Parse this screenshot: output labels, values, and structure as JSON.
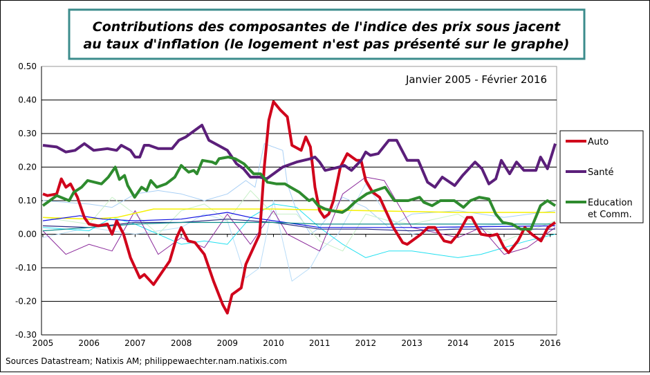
{
  "chart_data": {
    "type": "line",
    "title_lines": [
      "Contributions des composantes de l'indice des prix sous jacent",
      "au taux d'inflation (le logement n'est pas présenté sur le graphe)"
    ],
    "annotation": "Janvier 2005 - Février 2016",
    "source": "Sources Datastream; Natixis AM; philippewaechter.nam.natixis.com",
    "xlim": [
      2005,
      2016.15
    ],
    "ylim": [
      -0.3,
      0.5
    ],
    "x_ticks": [
      "2005",
      "2006",
      "2007",
      "2008",
      "2009",
      "2010",
      "2011",
      "2012",
      "2013",
      "2014",
      "2015",
      "2016"
    ],
    "y_ticks": [
      "0.50",
      "0.40",
      "0.30",
      "0.20",
      "0.10",
      "0.00",
      "-0.10",
      "-0.20",
      "-0.30"
    ],
    "grid": "horizontal",
    "legend_position": "right",
    "series": [
      {
        "name": "Auto",
        "color": "#D0021B",
        "width": 4,
        "x": [
          2005.0,
          2005.1,
          2005.3,
          2005.4,
          2005.5,
          2005.6,
          2005.75,
          2005.9,
          2006.0,
          2006.2,
          2006.4,
          2006.5,
          2006.6,
          2006.75,
          2006.9,
          2007.1,
          2007.2,
          2007.4,
          2007.6,
          2007.75,
          2007.9,
          2008.0,
          2008.15,
          2008.3,
          2008.5,
          2008.7,
          2008.9,
          2009.0,
          2009.1,
          2009.3,
          2009.4,
          2009.6,
          2009.7,
          2009.8,
          2009.9,
          2010.0,
          2010.15,
          2010.3,
          2010.4,
          2010.6,
          2010.7,
          2010.8,
          2010.9,
          2011.0,
          2011.1,
          2011.2,
          2011.3,
          2011.45,
          2011.6,
          2011.8,
          2011.9,
          2012.0,
          2012.15,
          2012.3,
          2012.5,
          2012.6,
          2012.8,
          2012.9,
          2013.0,
          2013.2,
          2013.35,
          2013.5,
          2013.7,
          2013.85,
          2014.0,
          2014.2,
          2014.3,
          2014.5,
          2014.7,
          2014.85,
          2015.0,
          2015.1,
          2015.3,
          2015.45,
          2015.6,
          2015.8,
          2015.95,
          2016.11
        ],
        "y": [
          0.12,
          0.115,
          0.12,
          0.165,
          0.14,
          0.15,
          0.11,
          0.05,
          0.03,
          0.025,
          0.03,
          0.0,
          0.04,
          0.0,
          -0.07,
          -0.13,
          -0.12,
          -0.15,
          -0.11,
          -0.08,
          -0.01,
          0.02,
          -0.02,
          -0.025,
          -0.06,
          -0.14,
          -0.21,
          -0.235,
          -0.18,
          -0.16,
          -0.09,
          -0.03,
          0.0,
          0.2,
          0.34,
          0.395,
          0.37,
          0.35,
          0.265,
          0.25,
          0.29,
          0.26,
          0.14,
          0.07,
          0.05,
          0.06,
          0.1,
          0.2,
          0.24,
          0.22,
          0.22,
          0.16,
          0.125,
          0.11,
          0.05,
          0.02,
          -0.025,
          -0.03,
          -0.02,
          0.0,
          0.02,
          0.02,
          -0.02,
          -0.025,
          0.0,
          0.05,
          0.05,
          0.0,
          -0.005,
          0.0,
          -0.04,
          -0.055,
          -0.02,
          0.02,
          0.0,
          -0.02,
          0.02,
          0.035
        ]
      },
      {
        "name": "Santé",
        "color": "#5B1F7A",
        "width": 4,
        "x": [
          2005.0,
          2005.3,
          2005.5,
          2005.7,
          2005.9,
          2006.1,
          2006.4,
          2006.6,
          2006.7,
          2006.9,
          2007.0,
          2007.1,
          2007.2,
          2007.3,
          2007.5,
          2007.8,
          2007.95,
          2008.1,
          2008.3,
          2008.45,
          2008.6,
          2008.8,
          2009.0,
          2009.2,
          2009.35,
          2009.5,
          2009.7,
          2009.85,
          2010.0,
          2010.2,
          2010.5,
          2010.8,
          2010.9,
          2011.0,
          2011.12,
          2011.42,
          2011.54,
          2011.69,
          2011.9,
          2012.0,
          2012.1,
          2012.27,
          2012.5,
          2012.67,
          2012.9,
          2013.14,
          2013.34,
          2013.5,
          2013.66,
          2013.93,
          2014.1,
          2014.37,
          2014.52,
          2014.67,
          2014.82,
          2014.94,
          2015.12,
          2015.27,
          2015.43,
          2015.69,
          2015.79,
          2015.94,
          2016.11
        ],
        "y": [
          0.265,
          0.26,
          0.245,
          0.25,
          0.27,
          0.25,
          0.255,
          0.25,
          0.265,
          0.25,
          0.23,
          0.23,
          0.265,
          0.265,
          0.255,
          0.255,
          0.28,
          0.29,
          0.31,
          0.325,
          0.28,
          0.265,
          0.25,
          0.21,
          0.195,
          0.17,
          0.17,
          0.165,
          0.18,
          0.2,
          0.215,
          0.225,
          0.23,
          0.215,
          0.19,
          0.2,
          0.205,
          0.19,
          0.22,
          0.245,
          0.235,
          0.24,
          0.28,
          0.28,
          0.22,
          0.22,
          0.155,
          0.14,
          0.17,
          0.145,
          0.175,
          0.215,
          0.195,
          0.15,
          0.165,
          0.22,
          0.18,
          0.215,
          0.19,
          0.19,
          0.23,
          0.195,
          0.27
        ]
      },
      {
        "name": "Education et Comm.",
        "color": "#2E8B2E",
        "width": 4,
        "x": [
          2005.0,
          2005.3,
          2005.57,
          2005.67,
          2005.84,
          2005.97,
          2006.27,
          2006.42,
          2006.57,
          2006.66,
          2006.77,
          2006.84,
          2006.99,
          2007.14,
          2007.25,
          2007.34,
          2007.47,
          2007.67,
          2007.86,
          2008.0,
          2008.16,
          2008.27,
          2008.34,
          2008.46,
          2008.67,
          2008.75,
          2008.82,
          2009.02,
          2009.17,
          2009.36,
          2009.57,
          2009.72,
          2009.87,
          2010.07,
          2010.25,
          2010.37,
          2010.56,
          2010.77,
          2010.85,
          2010.97,
          2011.12,
          2011.27,
          2011.49,
          2011.61,
          2011.76,
          2012.02,
          2012.21,
          2012.42,
          2012.62,
          2012.92,
          2013.17,
          2013.26,
          2013.44,
          2013.62,
          2013.92,
          2014.12,
          2014.27,
          2014.46,
          2014.67,
          2014.82,
          2014.97,
          2015.17,
          2015.36,
          2015.58,
          2015.79,
          2015.94,
          2016.11
        ],
        "y": [
          0.085,
          0.115,
          0.1,
          0.125,
          0.14,
          0.16,
          0.15,
          0.17,
          0.2,
          0.163,
          0.175,
          0.145,
          0.11,
          0.14,
          0.13,
          0.16,
          0.14,
          0.15,
          0.17,
          0.205,
          0.185,
          0.19,
          0.18,
          0.22,
          0.215,
          0.21,
          0.225,
          0.23,
          0.225,
          0.21,
          0.18,
          0.18,
          0.155,
          0.15,
          0.15,
          0.14,
          0.125,
          0.1,
          0.105,
          0.085,
          0.075,
          0.07,
          0.065,
          0.075,
          0.095,
          0.12,
          0.13,
          0.14,
          0.1,
          0.1,
          0.11,
          0.095,
          0.085,
          0.1,
          0.1,
          0.08,
          0.1,
          0.11,
          0.105,
          0.06,
          0.035,
          0.03,
          0.015,
          0.015,
          0.085,
          0.1,
          0.085
        ]
      },
      {
        "color": "#A8CFF5",
        "width": 1,
        "x": [
          2005,
          2006,
          2006.5,
          2007,
          2007.5,
          2008,
          2008.5,
          2009,
          2009.4,
          2009.6,
          2009.8,
          2010.2,
          2010.3,
          2010.5,
          2010.8,
          2011,
          2011.5,
          2012,
          2012.5,
          2013,
          2014,
          2015,
          2016.11
        ],
        "y": [
          0.1,
          0.09,
          0.08,
          0.12,
          0.13,
          0.12,
          0.1,
          0.12,
          0.16,
          0.14,
          0.27,
          0.25,
          0.15,
          0.07,
          0.0,
          0.02,
          0.11,
          0.08,
          0.02,
          0.06,
          0.07,
          0.05,
          0.07
        ]
      },
      {
        "color": "#B8DCF8",
        "width": 1,
        "x": [
          2005,
          2006,
          2007,
          2008,
          2008.5,
          2009,
          2009.4,
          2009.7,
          2010,
          2010.4,
          2010.8,
          2011,
          2011.4,
          2012,
          2012.5,
          2013,
          2014,
          2015,
          2016.11
        ],
        "y": [
          -0.01,
          0.02,
          0.0,
          0.02,
          0.06,
          0.04,
          -0.13,
          -0.1,
          0.1,
          -0.14,
          -0.1,
          -0.05,
          0.0,
          0.15,
          0.05,
          0.0,
          0.02,
          0.03,
          0.03
        ]
      },
      {
        "color": "#22E0F0",
        "width": 1,
        "x": [
          2005,
          2006,
          2006.5,
          2007,
          2007.5,
          2008,
          2008.5,
          2009,
          2009.5,
          2010,
          2010.5,
          2011,
          2011.5,
          2012,
          2012.5,
          2013,
          2013.5,
          2014,
          2014.5,
          2015,
          2015.5,
          2016.11
        ],
        "y": [
          0.02,
          0.01,
          0.05,
          0.03,
          0.0,
          -0.03,
          -0.02,
          -0.03,
          0.05,
          0.09,
          0.08,
          0.02,
          -0.03,
          -0.07,
          -0.05,
          -0.05,
          -0.06,
          -0.07,
          -0.06,
          -0.04,
          -0.02,
          0.0
        ]
      },
      {
        "color": "#C8F0C8",
        "width": 1,
        "x": [
          2005,
          2006,
          2006.5,
          2007,
          2007.5,
          2008,
          2008.5,
          2009,
          2009.5,
          2010,
          2010.5,
          2011,
          2011.5,
          2012,
          2012.5,
          2013,
          2014,
          2015,
          2016.11
        ],
        "y": [
          0.05,
          0.03,
          0.11,
          0.06,
          0.0,
          0.07,
          0.09,
          0.04,
          0.13,
          0.06,
          0.06,
          -0.02,
          -0.05,
          0.06,
          0.04,
          0.03,
          0.06,
          -0.02,
          0.04
        ]
      },
      {
        "color": "#8B2A9B",
        "width": 1,
        "x": [
          2005,
          2005.5,
          2006,
          2006.5,
          2007,
          2007.5,
          2008,
          2008.5,
          2009,
          2009.5,
          2010,
          2010.3,
          2011,
          2011.5,
          2012,
          2012.4,
          2013,
          2014,
          2014.5,
          2015,
          2015.5,
          2016.11
        ],
        "y": [
          0.01,
          -0.06,
          -0.03,
          -0.05,
          0.07,
          -0.06,
          -0.01,
          -0.04,
          0.06,
          -0.03,
          0.07,
          0.0,
          -0.05,
          0.12,
          0.17,
          0.16,
          0.02,
          -0.01,
          0.02,
          -0.06,
          -0.04,
          0.02
        ]
      },
      {
        "color": "#F5F000",
        "width": 1.5,
        "x": [
          2005,
          2006,
          2006.6,
          2007.4,
          2010,
          2012,
          2014,
          2016.11
        ],
        "y": [
          0.05,
          0.045,
          0.05,
          0.075,
          0.075,
          0.07,
          0.065,
          0.065
        ]
      },
      {
        "color": "#1010E0",
        "width": 1.2,
        "x": [
          2005,
          2005.8,
          2006.3,
          2007,
          2008,
          2009,
          2009.5,
          2010.5,
          2011,
          2013,
          2016.11
        ],
        "y": [
          0.04,
          0.055,
          0.045,
          0.04,
          0.045,
          0.065,
          0.05,
          0.03,
          0.02,
          0.02,
          0.025
        ]
      },
      {
        "color": "#2A2A80",
        "width": 1.2,
        "x": [
          2005,
          2006,
          2007,
          2008,
          2009,
          2010,
          2011,
          2012,
          2013,
          2014,
          2015,
          2016.11
        ],
        "y": [
          0.025,
          0.02,
          0.035,
          0.035,
          0.045,
          0.035,
          0.015,
          0.015,
          0.01,
          0.015,
          0.015,
          0.015
        ]
      },
      {
        "color": "#0A8A8A",
        "width": 1.2,
        "x": [
          2005,
          2007,
          2008,
          2010,
          2011,
          2016.11
        ],
        "y": [
          0.01,
          0.03,
          0.035,
          0.035,
          0.03,
          0.03
        ]
      }
    ]
  }
}
